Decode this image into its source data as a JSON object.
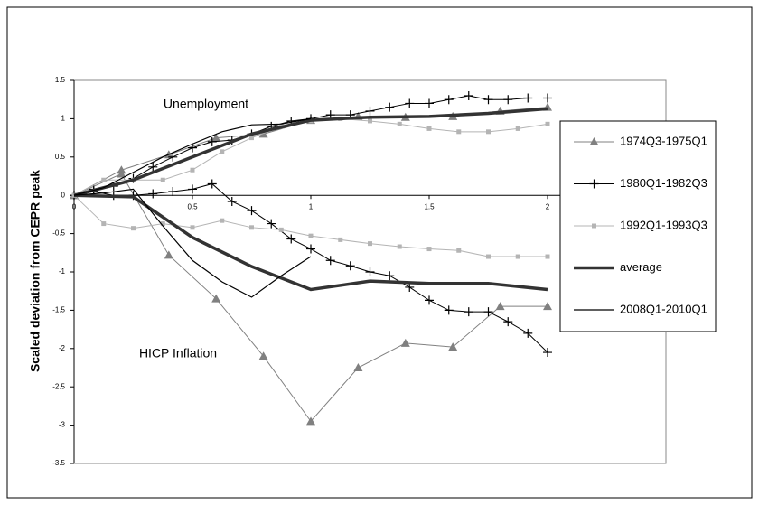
{
  "chart_data": {
    "type": "line",
    "y_label": "Scaled deviation from CEPR peak",
    "annotations": [
      "Unemployment",
      "HICP Inflation"
    ],
    "xlim": [
      0,
      2.5
    ],
    "xticks": [
      0,
      0.5,
      1,
      1.5,
      2
    ],
    "ylim": [
      -3.5,
      1.5
    ],
    "yticks": [
      1.5,
      1,
      0.5,
      0,
      -0.5,
      -1,
      -1.5,
      -2,
      -2.5,
      -3,
      -3.5
    ],
    "legend": "right",
    "series": [
      {
        "name": "1974Q3-1975Q1",
        "color": "#808080",
        "marker": "triangle",
        "width": 1,
        "x": [
          0,
          0.2,
          0.4,
          0.6,
          0.8,
          1.0,
          1.2,
          1.4,
          1.6,
          1.8,
          2.0
        ],
        "unemployment": [
          0,
          0.33,
          0.53,
          0.75,
          0.8,
          0.98,
          1.03,
          1.02,
          1.03,
          1.1,
          1.15
        ],
        "inflation": [
          0,
          0.28,
          -0.78,
          -1.35,
          -2.1,
          -2.95,
          -2.25,
          -1.93,
          -1.98,
          -1.45,
          -1.45
        ]
      },
      {
        "name": "1980Q1-1982Q3",
        "color": "#000000",
        "marker": "plus",
        "width": 1,
        "x": [
          0,
          0.083,
          0.167,
          0.25,
          0.333,
          0.417,
          0.5,
          0.583,
          0.667,
          0.75,
          0.833,
          0.917,
          1.0,
          1.083,
          1.167,
          1.25,
          1.333,
          1.417,
          1.5,
          1.583,
          1.667,
          1.75,
          1.833,
          1.917,
          2.0
        ],
        "unemployment": [
          0,
          0.08,
          0.12,
          0.22,
          0.37,
          0.5,
          0.62,
          0.7,
          0.72,
          0.8,
          0.9,
          0.97,
          1.0,
          1.05,
          1.05,
          1.1,
          1.15,
          1.2,
          1.2,
          1.25,
          1.3,
          1.25,
          1.25,
          1.27,
          1.27
        ],
        "inflation": [
          0,
          0.05,
          0,
          0,
          0.02,
          0.05,
          0.08,
          0.15,
          -0.08,
          -0.2,
          -0.37,
          -0.57,
          -0.7,
          -0.85,
          -0.92,
          -1.0,
          -1.05,
          -1.2,
          -1.37,
          -1.5,
          -1.52,
          -1.52,
          -1.65,
          -1.8,
          -2.05
        ]
      },
      {
        "name": "1992Q1-1993Q3",
        "color": "#b4b4b4",
        "marker": "square",
        "width": 1,
        "x": [
          0,
          0.125,
          0.25,
          0.375,
          0.5,
          0.625,
          0.75,
          0.875,
          1.0,
          1.125,
          1.25,
          1.375,
          1.5,
          1.625,
          1.75,
          1.875,
          2.0
        ],
        "unemployment": [
          0,
          0.2,
          0.2,
          0.2,
          0.33,
          0.57,
          0.75,
          0.9,
          0.97,
          1.0,
          0.97,
          0.93,
          0.87,
          0.83,
          0.83,
          0.87,
          0.93
        ],
        "inflation": [
          0,
          -0.37,
          -0.43,
          -0.37,
          -0.42,
          -0.33,
          -0.42,
          -0.45,
          -0.53,
          -0.58,
          -0.63,
          -0.67,
          -0.7,
          -0.72,
          -0.8,
          -0.8,
          -0.8
        ]
      },
      {
        "name": "average",
        "color": "#333333",
        "marker": "none",
        "width": 3.5,
        "x": [
          0,
          0.25,
          0.5,
          0.75,
          1.0,
          1.25,
          1.5,
          1.75,
          2.0
        ],
        "unemployment": [
          0,
          0.2,
          0.5,
          0.8,
          0.98,
          1.02,
          1.03,
          1.07,
          1.13
        ],
        "inflation": [
          0,
          -0.02,
          -0.55,
          -0.93,
          -1.23,
          -1.12,
          -1.15,
          -1.15,
          -1.23
        ]
      },
      {
        "name": "2008Q1-2010Q1",
        "color": "#000000",
        "marker": "none",
        "width": 1.2,
        "x": [
          0,
          0.125,
          0.25,
          0.375,
          0.5,
          0.625,
          0.75,
          0.875,
          1.0
        ],
        "unemployment": [
          0,
          0.1,
          0.3,
          0.5,
          0.67,
          0.83,
          0.92,
          0.93,
          1.0
        ],
        "inflation": [
          0,
          0.03,
          0.08,
          -0.4,
          -0.85,
          -1.13,
          -1.33,
          -1.05,
          -0.8
        ]
      }
    ]
  }
}
